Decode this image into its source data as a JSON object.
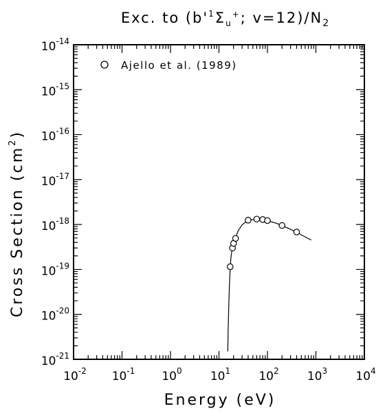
{
  "chart_data": {
    "type": "scatter",
    "title": {
      "prefix": "Exc. to (b'",
      "sup1": "1",
      "sigma": "Σ",
      "sub_u": "u",
      "sup_plus": "+",
      "suffix": "; v=12)/N",
      "sub_2": "2"
    },
    "xlabel": "Energy (eV)",
    "ylabel": {
      "text": "Cross Section (cm",
      "sup": "2",
      "close": ")"
    },
    "x_scale": "log",
    "y_scale": "log",
    "xlim": [
      0.01,
      10000
    ],
    "ylim": [
      1e-21,
      1e-14
    ],
    "x_ticks": [
      {
        "base": "10",
        "exp": "-2",
        "value": 0.01
      },
      {
        "base": "10",
        "exp": "-1",
        "value": 0.1
      },
      {
        "base": "10",
        "exp": "0",
        "value": 1
      },
      {
        "base": "10",
        "exp": "1",
        "value": 10
      },
      {
        "base": "10",
        "exp": "2",
        "value": 100
      },
      {
        "base": "10",
        "exp": "3",
        "value": 1000
      },
      {
        "base": "10",
        "exp": "4",
        "value": 10000
      }
    ],
    "y_ticks": [
      {
        "base": "10",
        "exp": "-14",
        "value": 1e-14
      },
      {
        "base": "10",
        "exp": "-15",
        "value": 1e-15
      },
      {
        "base": "10",
        "exp": "-16",
        "value": 1e-16
      },
      {
        "base": "10",
        "exp": "-17",
        "value": 1e-17
      },
      {
        "base": "10",
        "exp": "-18",
        "value": 1e-18
      },
      {
        "base": "10",
        "exp": "-19",
        "value": 1e-19
      },
      {
        "base": "10",
        "exp": "-20",
        "value": 1e-20
      },
      {
        "base": "10",
        "exp": "-21",
        "value": 1e-21
      }
    ],
    "legend": {
      "position": "top-left",
      "label": "Ajello et al. (1989)"
    },
    "series": [
      {
        "name": "Ajello et al. (1989)",
        "marker": "circle",
        "x": [
          17,
          19,
          20,
          22,
          40,
          60,
          80,
          100,
          200,
          400
        ],
        "y": [
          1.15e-19,
          3e-19,
          3.8e-19,
          4.9e-19,
          1.25e-18,
          1.32e-18,
          1.29e-18,
          1.22e-18,
          9.5e-19,
          6.8e-19
        ]
      }
    ],
    "fit_curve": {
      "x": [
        15.2,
        15.5,
        16,
        16.5,
        17,
        17.5,
        18,
        19,
        20,
        22,
        25,
        30,
        35,
        40,
        50,
        60,
        80,
        100,
        150,
        200,
        300,
        400,
        600,
        800
      ],
      "y": [
        1.5e-21,
        5e-21,
        1.8e-20,
        5e-20,
        1e-19,
        1.6e-19,
        2.2e-19,
        3.1e-19,
        3.9e-19,
        5.2e-19,
        7.3e-19,
        9.8e-19,
        1.13e-18,
        1.2e-18,
        1.29e-18,
        1.31e-18,
        1.28e-18,
        1.22e-18,
        1.07e-18,
        9.5e-19,
        7.8e-19,
        6.7e-19,
        5.3e-19,
        4.5e-19
      ]
    }
  }
}
